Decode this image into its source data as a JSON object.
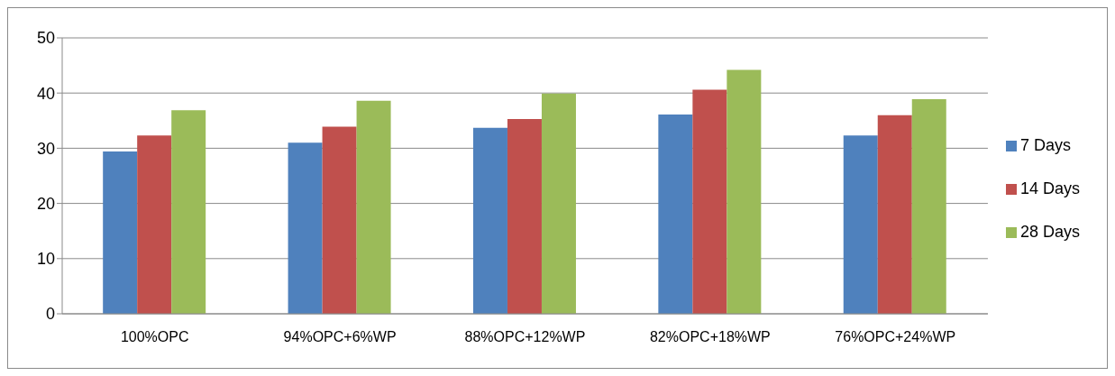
{
  "chart_data": {
    "type": "bar",
    "categories": [
      "100%OPC",
      "94%OPC+6%WP",
      "88%OPC+12%WP",
      "82%OPC+18%WP",
      "76%OPC+24%WP"
    ],
    "series": [
      {
        "name": "7 Days",
        "color": "#4f81bd",
        "values": [
          29.4,
          31.0,
          33.7,
          36.1,
          32.3
        ]
      },
      {
        "name": "14 Days",
        "color": "#c0504d",
        "values": [
          32.3,
          33.9,
          35.3,
          40.6,
          36.0
        ]
      },
      {
        "name": "28 Days",
        "color": "#9bbb59",
        "values": [
          36.9,
          38.6,
          39.9,
          44.2,
          38.9
        ]
      }
    ],
    "ylim": [
      0,
      50
    ],
    "yticks": [
      0,
      10,
      20,
      30,
      40,
      50
    ],
    "grid": "y",
    "legend": "right"
  }
}
